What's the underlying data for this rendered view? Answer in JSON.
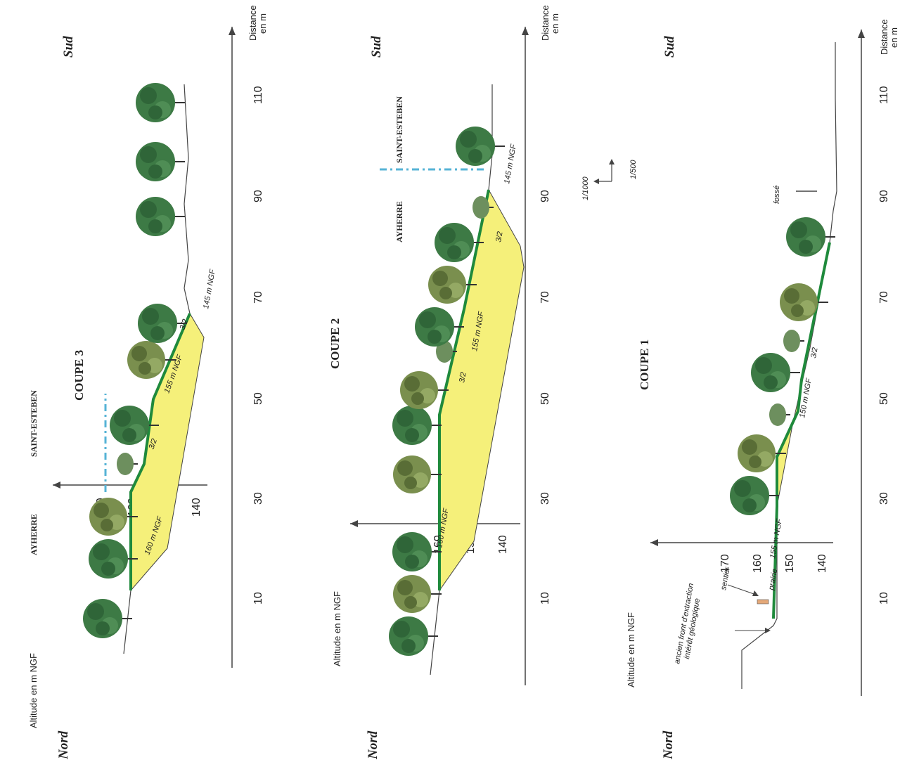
{
  "orientation": {
    "north": "Nord",
    "south": "Sud"
  },
  "axes": {
    "altitude_label": "Altitude en m NGF",
    "distance_label": "Distance en m",
    "distance_label_line1": "Distance",
    "distance_label_line2": "en m",
    "altitude_ticks": [
      "170",
      "160",
      "150",
      "140"
    ],
    "distance_ticks": [
      "10",
      "30",
      "50",
      "70",
      "90",
      "110"
    ]
  },
  "scale": {
    "horizontal": "1/1000",
    "vertical": "1/500"
  },
  "colors": {
    "fill": "#f5f07a",
    "ground_line": "#1f8a3c",
    "boundary": "#56b3d6",
    "tree": "#3d7a45",
    "tree_light": "#7a8f4e"
  },
  "sections": [
    {
      "title": "COUPE 3",
      "communes": [
        "AYHERRE",
        "SAINT-ESTEBEN"
      ],
      "annotations": [
        "160 m NGF",
        "3/2",
        "155 m NGF",
        "3/2",
        "145 m NGF"
      ]
    },
    {
      "title": "COUPE 2",
      "communes": [
        "AYHERRE",
        "SAINT-ESTEBEN"
      ],
      "annotations": [
        "160 m NGF",
        "3/2",
        "155 m NGF",
        "3/2",
        "145 m NGF"
      ]
    },
    {
      "title": "COUPE 1",
      "communes": [],
      "annotations": [
        "ancien front d'extraction",
        "intérêt géologique",
        "sentier",
        "prairie",
        "155 m NGF",
        "150 m NGF",
        "3/2",
        "fossé"
      ]
    }
  ]
}
